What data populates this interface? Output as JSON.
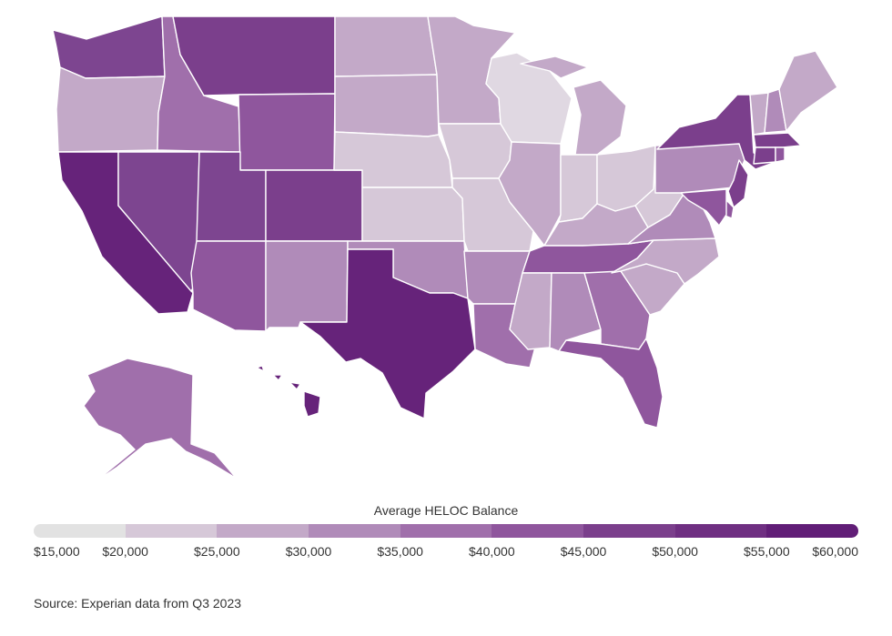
{
  "legend": {
    "title": "Average HELOC Balance",
    "ticks": [
      "$15,000",
      "$20,000",
      "$25,000",
      "$30,000",
      "$35,000",
      "$40,000",
      "$45,000",
      "$50,000",
      "$55,000",
      "$60,000"
    ],
    "colors": [
      "#e2e2e2",
      "#d6c8d8",
      "#c3a9c8",
      "#b08bb9",
      "#a06fab",
      "#8f569d",
      "#7b3f8c",
      "#6f2f82",
      "#611e77"
    ]
  },
  "source": "Source: Experian data from Q3 2023",
  "states": {
    "WA": "#7d4590",
    "OR": "#c3a9c8",
    "CA": "#66237a",
    "NV": "#7d4590",
    "ID": "#a06fab",
    "MT": "#7b3f8c",
    "WY": "#8f569d",
    "UT": "#7d4590",
    "AZ": "#8f569d",
    "CO": "#7b3f8c",
    "NM": "#b08bb9",
    "ND": "#c3a9c8",
    "SD": "#c3a9c8",
    "NE": "#d6c8d8",
    "KS": "#d6c8d8",
    "OK": "#b08bb9",
    "TX": "#66237a",
    "MN": "#c3a9c8",
    "IA": "#d6c8d8",
    "MO": "#d6c8d8",
    "AR": "#b08bb9",
    "LA": "#a06fab",
    "WI": "#e0d8e2",
    "IL": "#c3a9c8",
    "MI": "#c3a9c8",
    "IN": "#d6c8d8",
    "OH": "#d6c8d8",
    "KY": "#c3a9c8",
    "TN": "#8f569d",
    "MS": "#c3a9c8",
    "AL": "#b08bb9",
    "GA": "#a06fab",
    "FL": "#8f569d",
    "SC": "#c3a9c8",
    "NC": "#c3a9c8",
    "VA": "#b08bb9",
    "WV": "#d6c8d8",
    "PA": "#b08bb9",
    "NY": "#7b3f8c",
    "VT": "#c3a9c8",
    "NH": "#b08bb9",
    "ME": "#c3a9c8",
    "MA": "#7b3f8c",
    "CT": "#7b3f8c",
    "RI": "#8f569d",
    "NJ": "#7b3f8c",
    "DE": "#8f569d",
    "MD": "#8f569d",
    "AK": "#a06fab",
    "HI": "#66237a"
  }
}
